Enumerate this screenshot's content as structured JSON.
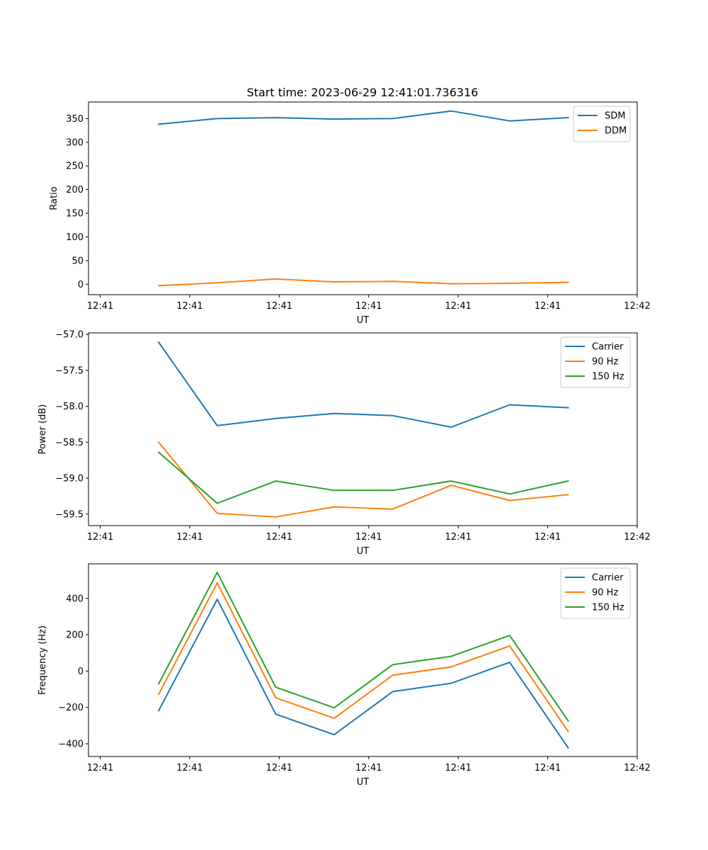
{
  "figure": {
    "title": "Start time: 2023-06-29 12:41:01.736316"
  },
  "chart_data": [
    {
      "type": "line",
      "title": "Start time: 2023-06-29 12:41:01.736316",
      "xlabel": "UT",
      "ylabel": "Ratio",
      "x": [
        1,
        2,
        3,
        4,
        5,
        6,
        7,
        8
      ],
      "xticks": [
        0,
        1.53,
        3.06,
        4.59,
        6.12,
        7.65,
        9.18
      ],
      "xtick_labels": [
        "12:41",
        "12:41",
        "12:41",
        "12:41",
        "12:41",
        "12:41",
        "12:42"
      ],
      "xlim": [
        -0.2,
        9.18
      ],
      "ylim": [
        -22,
        385
      ],
      "yticks": [
        0,
        50,
        100,
        150,
        200,
        250,
        300,
        350
      ],
      "ytick_labels": [
        "0",
        "50",
        "100",
        "150",
        "200",
        "250",
        "300",
        "350"
      ],
      "legend": "top-right",
      "series": [
        {
          "name": "SDM",
          "color": "#1f77b4",
          "values": [
            338,
            350,
            352,
            349,
            350,
            366,
            345,
            352
          ]
        },
        {
          "name": "DDM",
          "color": "#ff7f0e",
          "values": [
            -3,
            3,
            11,
            5,
            6,
            1,
            2,
            4
          ]
        }
      ]
    },
    {
      "type": "line",
      "title": "",
      "xlabel": "UT",
      "ylabel": "Power (dB)",
      "x": [
        1,
        2,
        3,
        4,
        5,
        6,
        7,
        8
      ],
      "xticks": [
        0,
        1.53,
        3.06,
        4.59,
        6.12,
        7.65,
        9.18
      ],
      "xtick_labels": [
        "12:41",
        "12:41",
        "12:41",
        "12:41",
        "12:41",
        "12:41",
        "12:42"
      ],
      "xlim": [
        -0.2,
        9.18
      ],
      "ylim": [
        -59.66,
        -56.98
      ],
      "yticks": [
        -57.0,
        -57.5,
        -58.0,
        -58.5,
        -59.0,
        -59.5
      ],
      "ytick_labels": [
        "−57.0",
        "−57.5",
        "−58.0",
        "−58.5",
        "−59.0",
        "−59.5"
      ],
      "legend": "top-right",
      "series": [
        {
          "name": "Carrier",
          "color": "#1f77b4",
          "values": [
            -57.11,
            -58.27,
            -58.17,
            -58.1,
            -58.13,
            -58.29,
            -57.98,
            -58.02
          ]
        },
        {
          "name": "90 Hz",
          "color": "#ff7f0e",
          "values": [
            -58.5,
            -59.49,
            -59.54,
            -59.4,
            -59.43,
            -59.1,
            -59.31,
            -59.23
          ]
        },
        {
          "name": "150 Hz",
          "color": "#2ca02c",
          "values": [
            -58.64,
            -59.35,
            -59.04,
            -59.17,
            -59.17,
            -59.04,
            -59.22,
            -59.04
          ]
        }
      ]
    },
    {
      "type": "line",
      "title": "",
      "xlabel": "UT",
      "ylabel": "Frequency (Hz)",
      "x": [
        1,
        2,
        3,
        4,
        5,
        6,
        7,
        8
      ],
      "xticks": [
        0,
        1.53,
        3.06,
        4.59,
        6.12,
        7.65,
        9.18
      ],
      "xtick_labels": [
        "12:41",
        "12:41",
        "12:41",
        "12:41",
        "12:41",
        "12:41",
        "12:42"
      ],
      "xlim": [
        -0.2,
        9.18
      ],
      "ylim": [
        -470,
        590
      ],
      "yticks": [
        400,
        200,
        0,
        -200,
        -400
      ],
      "ytick_labels": [
        "400",
        "200",
        "0",
        "−200",
        "−400"
      ],
      "legend": "top-right",
      "series": [
        {
          "name": "Carrier",
          "color": "#1f77b4",
          "values": [
            -218,
            395,
            -237,
            -350,
            -113,
            -67,
            48,
            -422
          ]
        },
        {
          "name": "90 Hz",
          "color": "#ff7f0e",
          "values": [
            -128,
            485,
            -147,
            -260,
            -23,
            23,
            138,
            -332
          ]
        },
        {
          "name": "150 Hz",
          "color": "#2ca02c",
          "values": [
            -70,
            543,
            -89,
            -202,
            35,
            81,
            196,
            -274
          ]
        }
      ]
    }
  ]
}
